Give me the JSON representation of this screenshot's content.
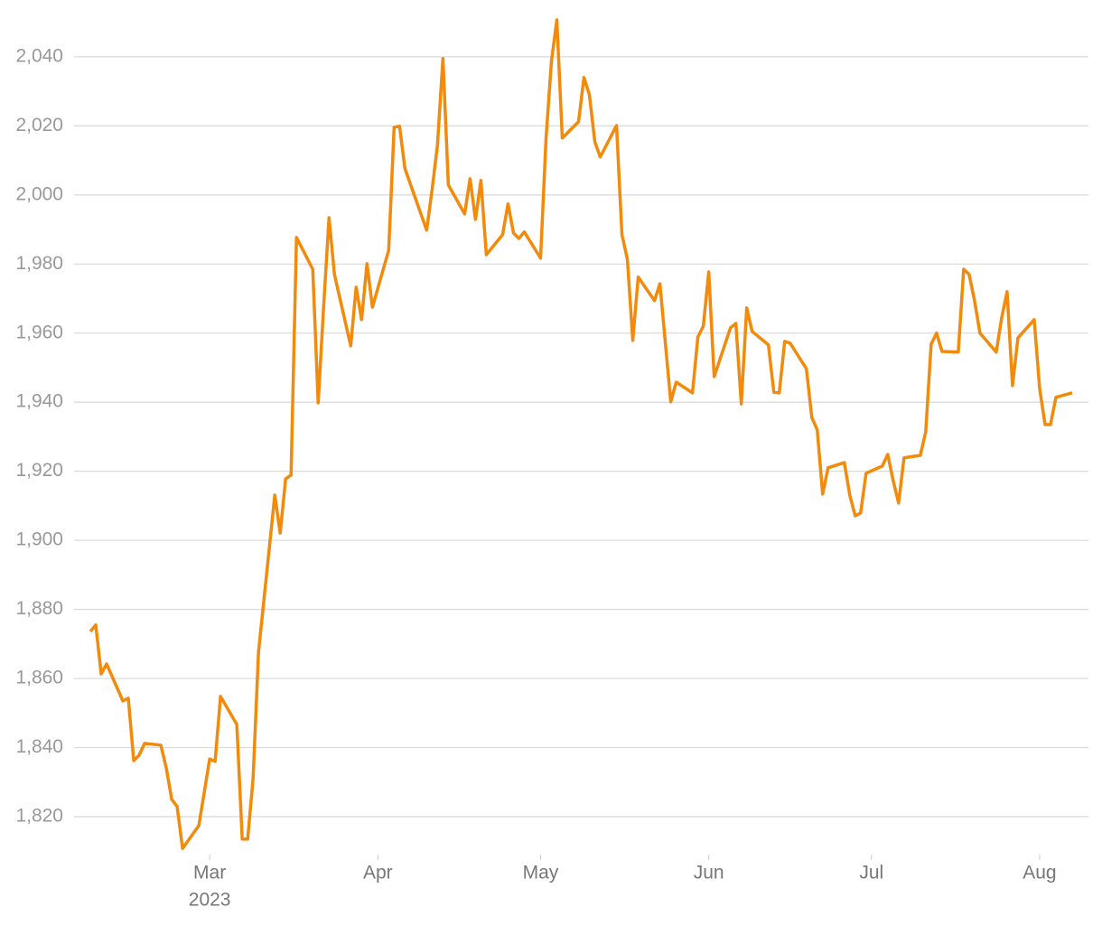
{
  "chart_data": {
    "type": "line",
    "year_label": "2023",
    "x": [
      38,
      39,
      40,
      41,
      44,
      45,
      46,
      47,
      48,
      51,
      52,
      53,
      54,
      55,
      58,
      60,
      61,
      62,
      65,
      66,
      67,
      68,
      69,
      72,
      73,
      74,
      75,
      76,
      79,
      80,
      81,
      82,
      83,
      86,
      87,
      88,
      89,
      90,
      93,
      94,
      95,
      96,
      100,
      101,
      102,
      103,
      104,
      107,
      108,
      109,
      110,
      111,
      114,
      115,
      116,
      117,
      118,
      121,
      122,
      123,
      124,
      125,
      128,
      129,
      130,
      131,
      132,
      135,
      136,
      137,
      138,
      139,
      142,
      143,
      145,
      146,
      149,
      150,
      151,
      152,
      153,
      156,
      157,
      158,
      159,
      160,
      163,
      164,
      165,
      166,
      167,
      170,
      171,
      172,
      173,
      174,
      177,
      178,
      179,
      180,
      181,
      184,
      185,
      186,
      187,
      188,
      191,
      192,
      193,
      194,
      195,
      198,
      199,
      200,
      201,
      202,
      205,
      206,
      207,
      208,
      209,
      212,
      213,
      214,
      215,
      216,
      219
    ],
    "series": [
      {
        "color": "#f28a0c",
        "values": [
          1873.6,
          1875.5,
          1861.3,
          1864.2,
          1853.5,
          1854.3,
          1836.2,
          1837.8,
          1841.2,
          1840.7,
          1834.1,
          1825.0,
          1822.9,
          1810.8,
          1817.4,
          1836.7,
          1836.0,
          1854.8,
          1846.7,
          1813.5,
          1813.5,
          1831.0,
          1867.6,
          1913.1,
          1902.1,
          1917.8,
          1918.9,
          1987.7,
          1978.5,
          1939.8,
          1967.5,
          1993.4,
          1977.0,
          1956.3,
          1973.3,
          1963.9,
          1980.1,
          1967.5,
          1984.0,
          2019.6,
          2019.9,
          2007.6,
          1989.8,
          2001.5,
          2014.6,
          2039.5,
          2002.9,
          1994.5,
          2004.7,
          1992.9,
          2004.2,
          1982.7,
          1988.5,
          1997.4,
          1989.0,
          1987.4,
          1989.3,
          1981.7,
          2016.2,
          2038.7,
          2050.7,
          2016.5,
          2021.2,
          2034.0,
          2029.0,
          2015.4,
          2011.0,
          2020.1,
          1988.5,
          1981.4,
          1957.9,
          1976.2,
          1969.4,
          1974.3,
          1940.1,
          1945.8,
          1942.7,
          1958.9,
          1962.0,
          1977.7,
          1947.4,
          1961.5,
          1962.8,
          1939.5,
          1967.3,
          1960.5,
          1956.6,
          1942.9,
          1942.7,
          1957.6,
          1957.1,
          1949.7,
          1935.6,
          1932.0,
          1913.4,
          1921.0,
          1922.5,
          1913.1,
          1907.1,
          1907.9,
          1919.4,
          1921.5,
          1924.9,
          1917.3,
          1910.8,
          1923.9,
          1924.6,
          1931.4,
          1956.8,
          1960.0,
          1954.7,
          1954.5,
          1978.5,
          1977.0,
          1969.4,
          1960.0,
          1954.5,
          1964.4,
          1972.0,
          1944.8,
          1958.6,
          1963.9,
          1944.0,
          1933.5,
          1933.5,
          1941.4,
          1942.7
        ]
      }
    ],
    "xlim": [
      35,
      222
    ],
    "xticks": [
      {
        "value": 60,
        "label": "Mar"
      },
      {
        "value": 91,
        "label": "Apr"
      },
      {
        "value": 121,
        "label": "May"
      },
      {
        "value": 152,
        "label": "Jun"
      },
      {
        "value": 182,
        "label": "Jul"
      },
      {
        "value": 213,
        "label": "Aug"
      }
    ],
    "ylim": [
      1809,
      2052
    ],
    "yticks": [
      {
        "value": 1820,
        "label": "1,820"
      },
      {
        "value": 1840,
        "label": "1,840"
      },
      {
        "value": 1860,
        "label": "1,860"
      },
      {
        "value": 1880,
        "label": "1,880"
      },
      {
        "value": 1900,
        "label": "1,900"
      },
      {
        "value": 1920,
        "label": "1,920"
      },
      {
        "value": 1940,
        "label": "1,940"
      },
      {
        "value": 1960,
        "label": "1,960"
      },
      {
        "value": 1980,
        "label": "1,980"
      },
      {
        "value": 2000,
        "label": "2,000"
      },
      {
        "value": 2020,
        "label": "2,020"
      },
      {
        "value": 2040,
        "label": "2,040"
      }
    ],
    "grid": true
  }
}
